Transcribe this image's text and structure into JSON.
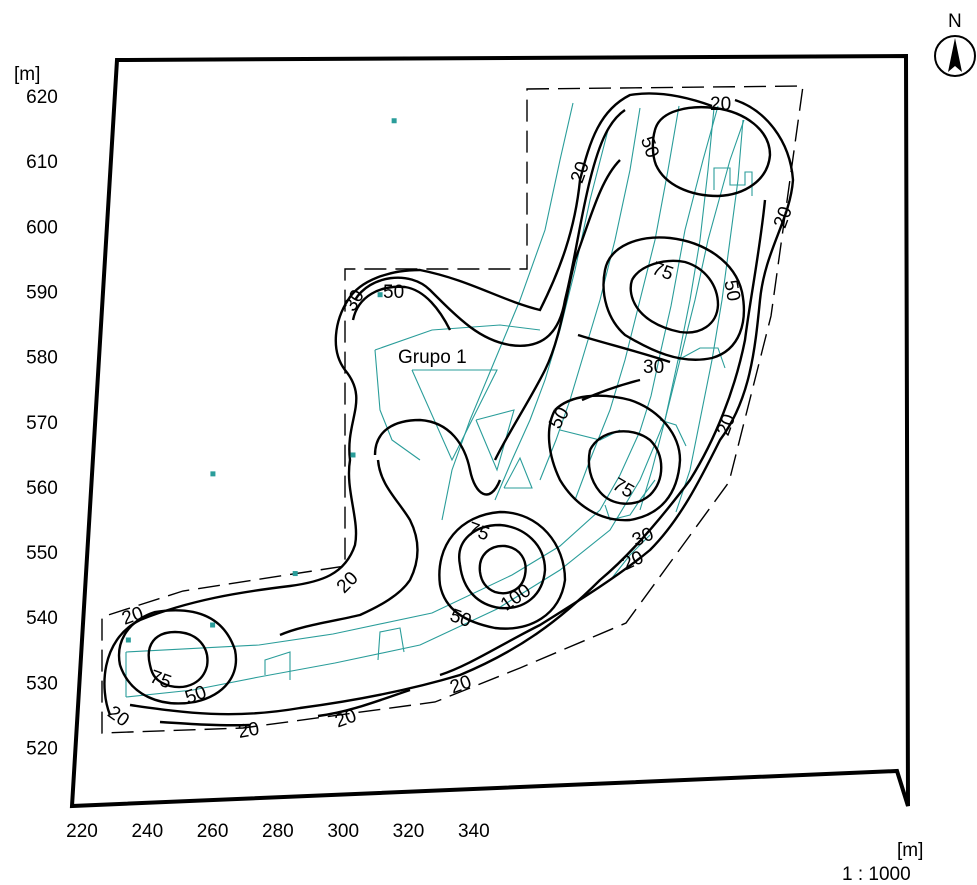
{
  "map": {
    "x_unit": "[m]",
    "y_unit": "[m]",
    "scale": "1 : 1000",
    "north": "N",
    "group_label": "Grupo 1",
    "x_ticks": [
      220,
      240,
      260,
      280,
      300,
      320,
      340
    ],
    "y_ticks": [
      520,
      530,
      540,
      550,
      560,
      570,
      580,
      590,
      600,
      610,
      620
    ],
    "isoline_levels": [
      20,
      30,
      50,
      75,
      100
    ],
    "isoline_labels": [
      "20",
      "30",
      "50",
      "75",
      "100"
    ],
    "luminaires": [
      {
        "x": 234.2,
        "y": 536.5
      },
      {
        "x": 260.0,
        "y": 538.8
      },
      {
        "x": 285.3,
        "y": 546.7
      },
      {
        "x": 303.0,
        "y": 564.9
      },
      {
        "x": 311.3,
        "y": 589.5
      },
      {
        "x": 315.6,
        "y": 616.2
      },
      {
        "x": 260.1,
        "y": 562.0
      }
    ],
    "colors": {
      "isoline": "#000000",
      "grid_lines": "#2a9d9a",
      "background": "#ffffff"
    }
  }
}
